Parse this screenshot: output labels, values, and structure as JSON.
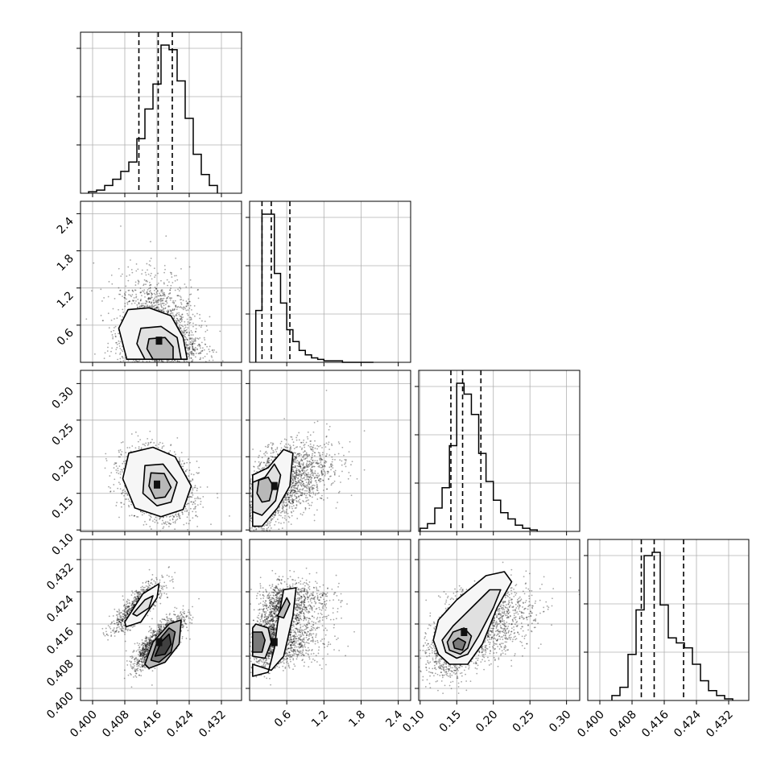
{
  "chart_data": {
    "type": "corner",
    "grid": true,
    "parameters": [
      {
        "range": [
          0.397,
          0.437
        ],
        "ticks": [
          0.4,
          0.408,
          0.416,
          0.424,
          0.432
        ],
        "tick_labels": [
          "0.400",
          "0.408",
          "0.416",
          "0.424",
          "0.432"
        ],
        "quantile_lines": [
          0.4115,
          0.4163,
          0.4198
        ],
        "hist": {
          "edges": [
            0.399,
            0.401,
            0.403,
            0.405,
            0.407,
            0.409,
            0.411,
            0.413,
            0.415,
            0.417,
            0.419,
            0.421,
            0.423,
            0.425,
            0.427,
            0.429,
            0.431
          ],
          "counts": [
            1,
            2,
            5,
            9,
            14,
            20,
            35,
            54,
            70,
            95,
            92,
            72,
            48,
            25,
            12,
            5
          ]
        }
      },
      {
        "range": [
          0.0,
          2.6
        ],
        "ticks": [
          0.6,
          1.2,
          1.8,
          2.4
        ],
        "tick_labels": [
          "0.6",
          "1.2",
          "1.8",
          "2.4"
        ],
        "quantile_lines": [
          0.2,
          0.35,
          0.65
        ],
        "hist": {
          "edges": [
            0.1,
            0.2,
            0.3,
            0.4,
            0.5,
            0.6,
            0.7,
            0.8,
            0.9,
            1.0,
            1.1,
            1.2,
            1.3,
            1.4,
            1.5,
            1.6,
            1.7,
            1.8,
            1.9,
            2.0
          ],
          "counts": [
            35,
            100,
            100,
            60,
            40,
            22,
            14,
            8,
            5,
            3,
            2,
            1,
            1,
            1,
            0,
            0,
            0,
            0,
            0
          ]
        }
      },
      {
        "range": [
          0.098,
          0.318
        ],
        "ticks": [
          0.1,
          0.15,
          0.2,
          0.25,
          0.3
        ],
        "tick_labels": [
          "0.10",
          "0.15",
          "0.20",
          "0.25",
          "0.30"
        ],
        "quantile_lines": [
          0.142,
          0.158,
          0.183
        ],
        "hist": {
          "edges": [
            0.1,
            0.11,
            0.12,
            0.13,
            0.14,
            0.15,
            0.16,
            0.17,
            0.18,
            0.19,
            0.2,
            0.21,
            0.22,
            0.23,
            0.24,
            0.25,
            0.26
          ],
          "counts": [
            2,
            5,
            15,
            28,
            55,
            95,
            88,
            75,
            50,
            32,
            20,
            12,
            8,
            4,
            2,
            1
          ]
        }
      },
      {
        "range": [
          0.397,
          0.437
        ],
        "ticks": [
          0.4,
          0.408,
          0.416,
          0.424,
          0.432
        ],
        "tick_labels": [
          "0.400",
          "0.408",
          "0.416",
          "0.424",
          "0.432"
        ],
        "quantile_lines": [
          0.4103,
          0.4135,
          0.4208
        ],
        "hist": {
          "edges": [
            0.403,
            0.405,
            0.407,
            0.409,
            0.411,
            0.413,
            0.415,
            0.417,
            0.419,
            0.421,
            0.423,
            0.425,
            0.427,
            0.429,
            0.431,
            0.433
          ],
          "counts": [
            3,
            8,
            28,
            55,
            88,
            90,
            58,
            38,
            35,
            32,
            22,
            12,
            6,
            3,
            1
          ]
        }
      }
    ]
  }
}
